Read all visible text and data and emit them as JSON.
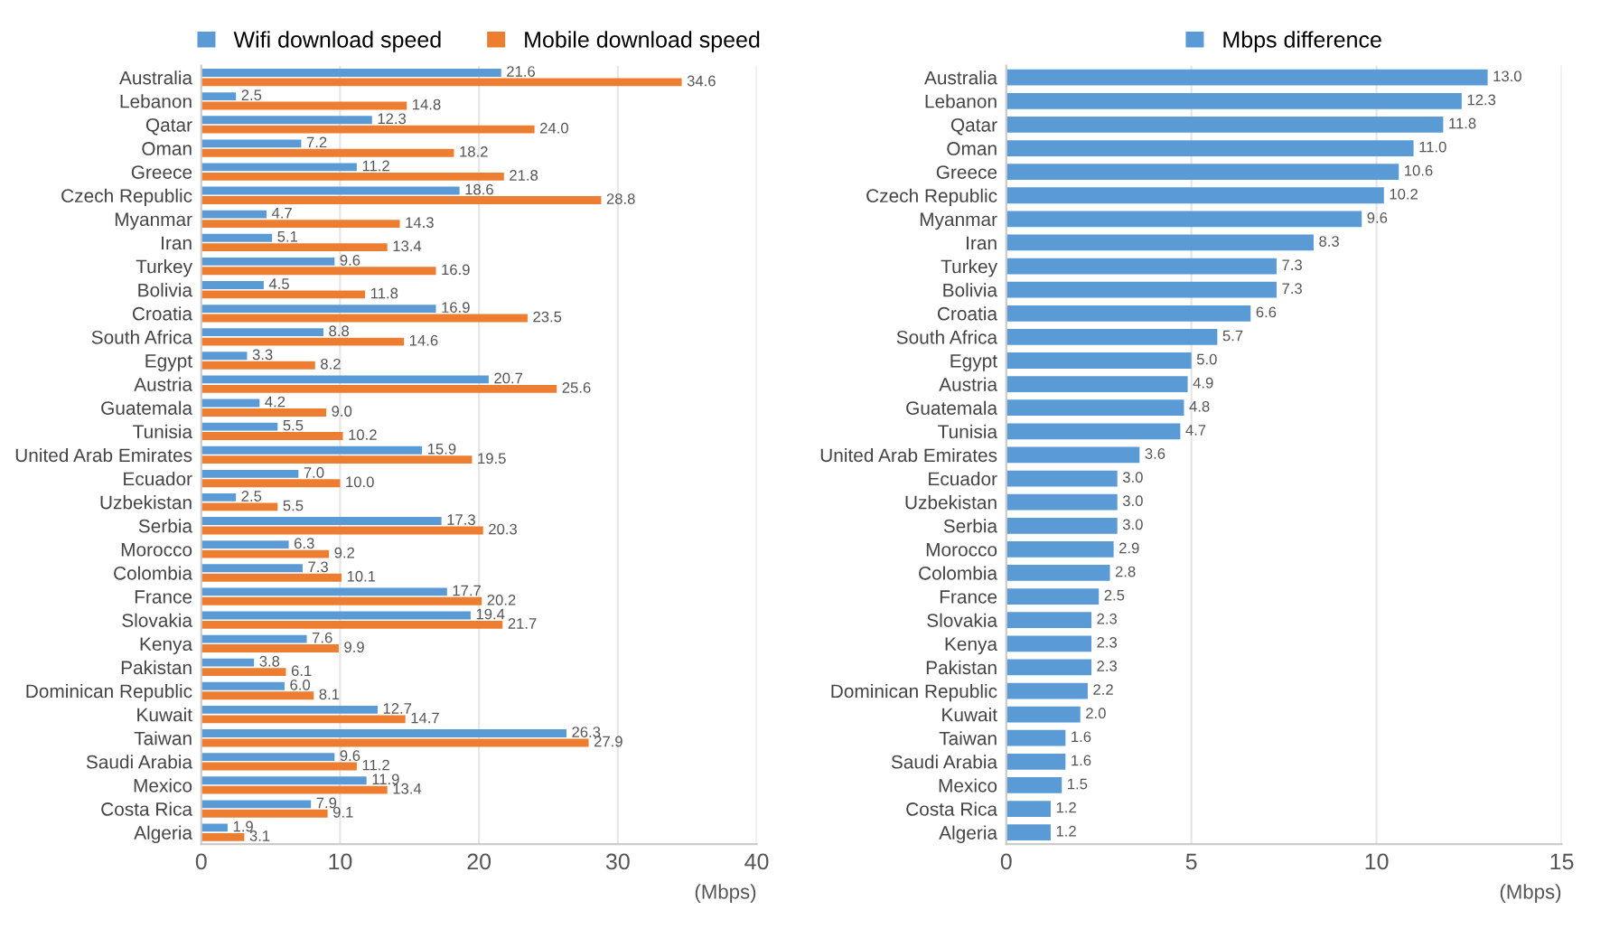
{
  "chart_data": [
    {
      "type": "bar",
      "orientation": "horizontal",
      "xlabel": "(Mbps)",
      "categories": [
        "Australia",
        "Lebanon",
        "Qatar",
        "Oman",
        "Greece",
        "Czech Republic",
        "Myanmar",
        "Iran",
        "Turkey",
        "Bolivia",
        "Croatia",
        "South Africa",
        "Egypt",
        "Austria",
        "Guatemala",
        "Tunisia",
        "United Arab Emirates",
        "Ecuador",
        "Uzbekistan",
        "Serbia",
        "Morocco",
        "Colombia",
        "France",
        "Slovakia",
        "Kenya",
        "Pakistan",
        "Dominican Republic",
        "Kuwait",
        "Taiwan",
        "Saudi Arabia",
        "Mexico",
        "Costa Rica",
        "Algeria"
      ],
      "series": [
        {
          "name": "Wifi download speed",
          "color": "#5b9bd5",
          "values": [
            21.6,
            2.5,
            12.3,
            7.2,
            11.2,
            18.6,
            4.7,
            5.1,
            9.6,
            4.5,
            16.9,
            8.8,
            3.3,
            20.7,
            4.2,
            5.5,
            15.9,
            7,
            2.5,
            17.3,
            6.3,
            7.3,
            17.7,
            19.4,
            7.6,
            3.8,
            6,
            12.7,
            26.3,
            9.6,
            11.9,
            7.9,
            1.9
          ],
          "value_labels": [
            "21.6",
            "2.5",
            "12.3",
            "7.2",
            "11.2",
            "18.6",
            "4.7",
            "5.1",
            "9.6",
            "4.5",
            "16.9",
            "8.8",
            "3.3",
            "20.7",
            "4.2",
            "5.5",
            "15.9",
            "7.0",
            "2.5",
            "17.3",
            "6.3",
            "7.3",
            "17.7",
            "19.4",
            "7.6",
            "3.8",
            "6.0",
            "12.7",
            "26.3",
            "9.6",
            "11.9",
            "7.9",
            "1.9"
          ]
        },
        {
          "name": "Mobile download speed",
          "color": "#ed7d31",
          "values": [
            34.6,
            14.8,
            24,
            18.2,
            21.8,
            28.8,
            14.3,
            13.4,
            16.9,
            11.8,
            23.5,
            14.6,
            8.2,
            25.6,
            9,
            10.2,
            19.5,
            10,
            5.5,
            20.3,
            9.2,
            10.1,
            20.2,
            21.7,
            9.9,
            6.1,
            8.1,
            14.7,
            27.9,
            11.2,
            13.4,
            9.1,
            3.1
          ],
          "value_labels": [
            "34.6",
            "14.8",
            "24.0",
            "18.2",
            "21.8",
            "28.8",
            "14.3",
            "13.4",
            "16.9",
            "11.8",
            "23.5",
            "14.6",
            "8.2",
            "25.6",
            "9.0",
            "10.2",
            "19.5",
            "10.0",
            "5.5",
            "20.3",
            "9.2",
            "10.1",
            "20.2",
            "21.7",
            "9.9",
            "6.1",
            "8.1",
            "14.7",
            "27.9",
            "11.2",
            "13.4",
            "9.1",
            "3.1"
          ]
        }
      ],
      "xlim": [
        0,
        40
      ],
      "xticks": [
        0,
        10,
        20,
        30,
        40
      ],
      "grid": "x",
      "legend": "top"
    },
    {
      "type": "bar",
      "orientation": "horizontal",
      "xlabel": "(Mbps)",
      "categories": [
        "Australia",
        "Lebanon",
        "Qatar",
        "Oman",
        "Greece",
        "Czech Republic",
        "Myanmar",
        "Iran",
        "Turkey",
        "Bolivia",
        "Croatia",
        "South Africa",
        "Egypt",
        "Austria",
        "Guatemala",
        "Tunisia",
        "United Arab Emirates",
        "Ecuador",
        "Uzbekistan",
        "Serbia",
        "Morocco",
        "Colombia",
        "France",
        "Slovakia",
        "Kenya",
        "Pakistan",
        "Dominican Republic",
        "Kuwait",
        "Taiwan",
        "Saudi Arabia",
        "Mexico",
        "Costa Rica",
        "Algeria"
      ],
      "series": [
        {
          "name": "Mbps difference",
          "color": "#5b9bd5",
          "values": [
            13,
            12.3,
            11.8,
            11,
            10.6,
            10.2,
            9.6,
            8.3,
            7.3,
            7.3,
            6.6,
            5.7,
            5,
            4.9,
            4.8,
            4.7,
            3.6,
            3,
            3,
            3,
            2.9,
            2.8,
            2.5,
            2.3,
            2.3,
            2.3,
            2.2,
            2,
            1.6,
            1.6,
            1.5,
            1.2,
            1.2
          ],
          "value_labels": [
            "13.0",
            "12.3",
            "11.8",
            "11.0",
            "10.6",
            "10.2",
            "9.6",
            "8.3",
            "7.3",
            "7.3",
            "6.6",
            "5.7",
            "5.0",
            "4.9",
            "4.8",
            "4.7",
            "3.6",
            "3.0",
            "3.0",
            "3.0",
            "2.9",
            "2.8",
            "2.5",
            "2.3",
            "2.3",
            "2.3",
            "2.2",
            "2.0",
            "1.6",
            "1.6",
            "1.5",
            "1.2",
            "1.2"
          ]
        }
      ],
      "xlim": [
        0,
        15
      ],
      "xticks": [
        0,
        5,
        10,
        15
      ],
      "grid": "x",
      "legend": "top"
    }
  ]
}
